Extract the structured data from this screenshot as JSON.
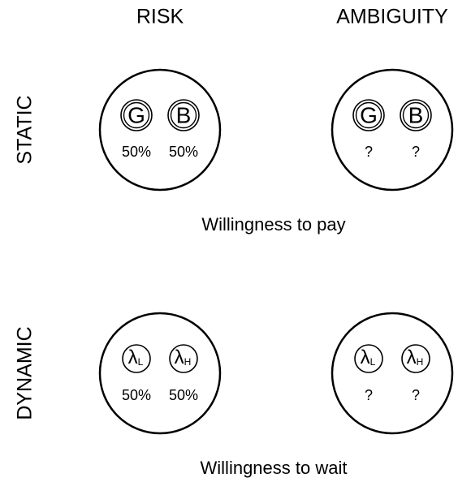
{
  "columns": [
    "RISK",
    "AMBIGUITY"
  ],
  "rows": [
    {
      "label": "STATIC",
      "caption": "Willingness to pay",
      "cells": [
        {
          "items": [
            {
              "symbol": "G",
              "prob": "50%"
            },
            {
              "symbol": "B",
              "prob": "50%"
            }
          ]
        },
        {
          "items": [
            {
              "symbol": "G",
              "prob": "?"
            },
            {
              "symbol": "B",
              "prob": "?"
            }
          ]
        }
      ]
    },
    {
      "label": "DYNAMIC",
      "caption": "Willingness to wait",
      "cells": [
        {
          "items": [
            {
              "symbol": "λ",
              "sub": "L",
              "prob": "50%"
            },
            {
              "symbol": "λ",
              "sub": "H",
              "prob": "50%"
            }
          ]
        },
        {
          "items": [
            {
              "symbol": "λ",
              "sub": "L",
              "prob": "?"
            },
            {
              "symbol": "λ",
              "sub": "H",
              "prob": "?"
            }
          ]
        }
      ]
    }
  ]
}
